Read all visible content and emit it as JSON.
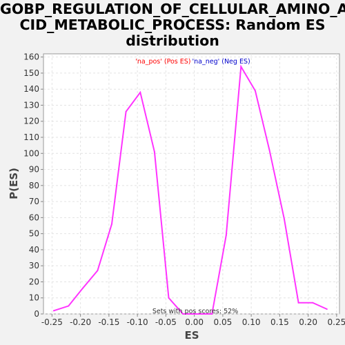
{
  "chart_data": {
    "type": "line",
    "title_lines": [
      "GOBP_REGULATION_OF_CELLULAR_AMINO_A",
      "CID_METABOLIC_PROCESS: Random ES",
      "distribution"
    ],
    "xlabel": "ES",
    "ylabel": "P(ES)",
    "xlim": [
      -0.265,
      0.255
    ],
    "ylim": [
      0,
      162
    ],
    "x_ticks": [
      -0.25,
      -0.2,
      -0.15,
      -0.1,
      -0.05,
      0.0,
      0.05,
      0.1,
      0.15,
      0.2,
      0.25
    ],
    "x_tick_labels": [
      "-0.25",
      "-0.20",
      "-0.15",
      "-0.10",
      "-0.05",
      "0.00",
      "0.05",
      "0.10",
      "0.15",
      "0.20",
      "0.25"
    ],
    "y_ticks": [
      0,
      10,
      20,
      30,
      40,
      50,
      60,
      70,
      80,
      90,
      100,
      110,
      120,
      130,
      140,
      150,
      160
    ],
    "y_tick_labels": [
      "0",
      "10",
      "20",
      "30",
      "40",
      "50",
      "60",
      "70",
      "80",
      "90",
      "100",
      "110",
      "120",
      "130",
      "140",
      "150",
      "160"
    ],
    "grid": true,
    "legend": [
      {
        "text": "'na_pos' (Pos ES)",
        "color": "#ff0000"
      },
      {
        "text": "'na_neg' (Neg ES)",
        "color": "#0000cc"
      }
    ],
    "annotation": "Sets with pos scores: 52%",
    "series": [
      {
        "color": "#ff33ff",
        "x": [
          -0.247,
          -0.221,
          -0.196,
          -0.17,
          -0.145,
          -0.12,
          -0.095,
          -0.07,
          -0.045,
          -0.02,
          0.006,
          0.031,
          0.056,
          0.082,
          0.107,
          0.132,
          0.158,
          0.183,
          0.208,
          0.233
        ],
        "y": [
          2,
          5,
          16,
          27,
          56,
          126,
          138,
          101,
          10,
          0,
          0,
          0,
          49,
          154,
          139,
          102,
          59,
          7,
          7,
          3
        ]
      }
    ]
  }
}
